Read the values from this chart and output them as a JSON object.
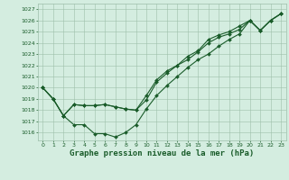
{
  "bg_color": "#d4ede0",
  "grid_color": "#9dbfaa",
  "line_color": "#1a5c2a",
  "xlabel": "Graphe pression niveau de la mer (hPa)",
  "ylim": [
    1015.3,
    1027.5
  ],
  "xlim": [
    -0.5,
    23.5
  ],
  "yticks": [
    1016,
    1017,
    1018,
    1019,
    1020,
    1021,
    1022,
    1023,
    1024,
    1025,
    1026,
    1027
  ],
  "xticks": [
    0,
    1,
    2,
    3,
    4,
    5,
    6,
    7,
    8,
    9,
    10,
    11,
    12,
    13,
    14,
    15,
    16,
    17,
    18,
    19,
    20,
    21,
    22,
    23
  ],
  "line1_y": [
    1020.0,
    1019.0,
    1017.5,
    1016.7,
    1016.7,
    1015.9,
    1015.9,
    1015.6,
    1016.0,
    1016.7,
    1018.1,
    1019.3,
    1020.2,
    1021.0,
    1021.8,
    1022.5,
    1023.0,
    1023.7,
    1024.3,
    1024.8,
    1026.0,
    1025.1,
    1026.0,
    1026.6
  ],
  "line2_y": [
    1020.0,
    1019.0,
    1017.5,
    1018.5,
    1018.4,
    1018.4,
    1018.5,
    1018.3,
    1018.1,
    1018.0,
    1018.9,
    1020.5,
    1021.3,
    1022.0,
    1022.5,
    1023.2,
    1024.0,
    1024.5,
    1024.8,
    1025.2,
    1026.0,
    1025.1,
    1026.0,
    1026.6
  ],
  "line3_y": [
    1020.0,
    1019.0,
    1017.5,
    1018.5,
    1018.4,
    1018.4,
    1018.5,
    1018.3,
    1018.1,
    1018.0,
    1019.3,
    1020.7,
    1021.5,
    1022.0,
    1022.8,
    1023.3,
    1024.3,
    1024.7,
    1025.0,
    1025.5,
    1026.0,
    1025.1,
    1026.0,
    1026.6
  ],
  "figsize": [
    3.2,
    2.0
  ],
  "dpi": 100,
  "xlabel_fontsize": 6.5,
  "tick_labelsize": 4.5,
  "linewidth": 0.8,
  "markersize": 2.0
}
